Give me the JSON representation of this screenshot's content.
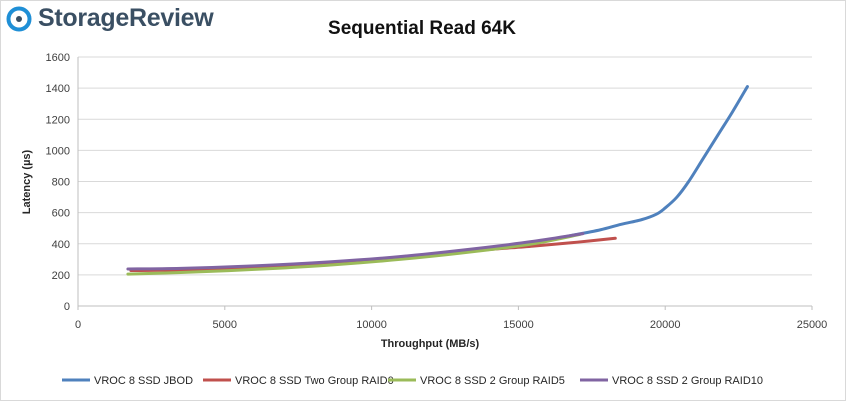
{
  "brand": {
    "name": "StorageReview",
    "icon": "storagereview-logo-icon",
    "colors": {
      "text": "#3a4f63",
      "ring": "#1f8fd6"
    }
  },
  "chart_data": {
    "type": "line",
    "title": "Sequential Read 64K",
    "xlabel": "Throughput (MB/s)",
    "ylabel": "Latency (µs)",
    "xlim": [
      0,
      25000
    ],
    "ylim": [
      0,
      1600
    ],
    "xticks": [
      "0",
      "5000",
      "10000",
      "15000",
      "20000",
      "25000"
    ],
    "yticks": [
      "0",
      "200",
      "400",
      "600",
      "800",
      "1000",
      "1200",
      "1400",
      "1600"
    ],
    "grid": "horizontal",
    "legend_position": "bottom",
    "series": [
      {
        "name": "VROC 8 SSD JBOD",
        "color": "#4f81bd",
        "points": [
          [
            1800,
            235
          ],
          [
            3500,
            238
          ],
          [
            6000,
            255
          ],
          [
            8500,
            280
          ],
          [
            11000,
            315
          ],
          [
            13500,
            365
          ],
          [
            15500,
            410
          ],
          [
            17000,
            460
          ],
          [
            17800,
            490
          ],
          [
            18500,
            525
          ],
          [
            19200,
            555
          ],
          [
            19700,
            590
          ],
          [
            20000,
            630
          ],
          [
            20400,
            700
          ],
          [
            20800,
            800
          ],
          [
            21300,
            950
          ],
          [
            21800,
            1100
          ],
          [
            22300,
            1250
          ],
          [
            22800,
            1410
          ]
        ]
      },
      {
        "name": "VROC 8 SSD Two Group RAID0",
        "color": "#c0504d",
        "points": [
          [
            1800,
            228
          ],
          [
            3500,
            232
          ],
          [
            6000,
            250
          ],
          [
            8500,
            275
          ],
          [
            11000,
            310
          ],
          [
            13500,
            355
          ],
          [
            15500,
            385
          ],
          [
            17000,
            410
          ],
          [
            18300,
            435
          ]
        ]
      },
      {
        "name": "VROC 8 SSD 2 Group RAID5",
        "color": "#9bbb59",
        "points": [
          [
            1700,
            205
          ],
          [
            3500,
            215
          ],
          [
            6000,
            235
          ],
          [
            8500,
            262
          ],
          [
            11000,
            300
          ],
          [
            13500,
            350
          ],
          [
            15500,
            400
          ],
          [
            17100,
            460
          ]
        ]
      },
      {
        "name": "VROC 8 SSD 2 Group RAID10",
        "color": "#8064a2",
        "points": [
          [
            1700,
            238
          ],
          [
            3500,
            242
          ],
          [
            6000,
            258
          ],
          [
            8500,
            283
          ],
          [
            11000,
            318
          ],
          [
            13500,
            368
          ],
          [
            15500,
            415
          ],
          [
            17200,
            465
          ]
        ]
      }
    ]
  }
}
